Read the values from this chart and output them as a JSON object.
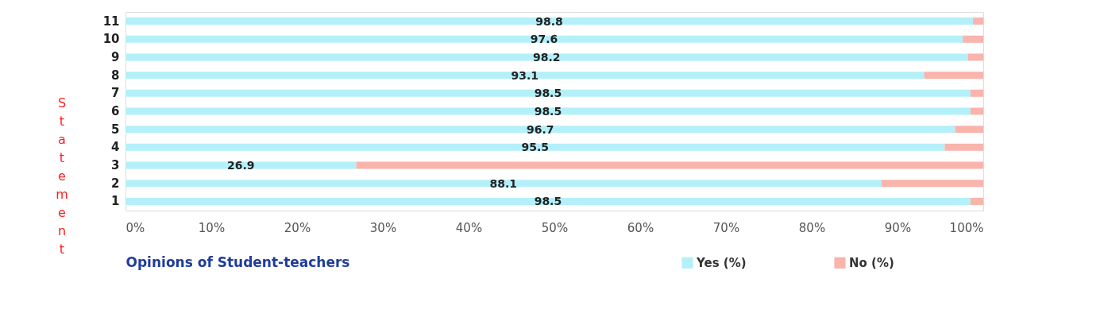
{
  "chart_data": {
    "type": "bar",
    "orientation": "horizontal",
    "stacked": true,
    "xlabel": "Opinions of Student-teachers",
    "ylabel": "Statement",
    "categories": [
      "11",
      "10",
      "9",
      "8",
      "7",
      "6",
      "5",
      "4",
      "3",
      "2",
      "1"
    ],
    "series": [
      {
        "name": "Yes (%)",
        "color": "#b3f0fa",
        "values": [
          98.8,
          97.6,
          98.2,
          93.1,
          98.5,
          98.5,
          96.7,
          95.5,
          26.9,
          88.1,
          98.5
        ],
        "value_labels": [
          "98.8",
          "97.6",
          "98.2",
          "93.1",
          "98.5",
          "98.5",
          "96.7",
          "95.5",
          "26.9",
          "88.1",
          "98.5"
        ]
      },
      {
        "name": "No (%)",
        "color": "#f9b4ac",
        "values": [
          1.2,
          2.4,
          1.8,
          6.9,
          1.5,
          1.5,
          3.3,
          4.5,
          73.1,
          11.9,
          1.5
        ]
      }
    ],
    "xlim": [
      0,
      100
    ],
    "xticks": [
      {
        "value": 0,
        "label": "0%"
      },
      {
        "value": 10,
        "label": "10%"
      },
      {
        "value": 20,
        "label": "20%"
      },
      {
        "value": 30,
        "label": "30%"
      },
      {
        "value": 40,
        "label": "40%"
      },
      {
        "value": 50,
        "label": "50%"
      },
      {
        "value": 60,
        "label": "60%"
      },
      {
        "value": 70,
        "label": "70%"
      },
      {
        "value": 80,
        "label": "80%"
      },
      {
        "value": 90,
        "label": "90%"
      },
      {
        "value": 100,
        "label": "100%"
      }
    ],
    "grid": false,
    "legend": "bottom right"
  }
}
